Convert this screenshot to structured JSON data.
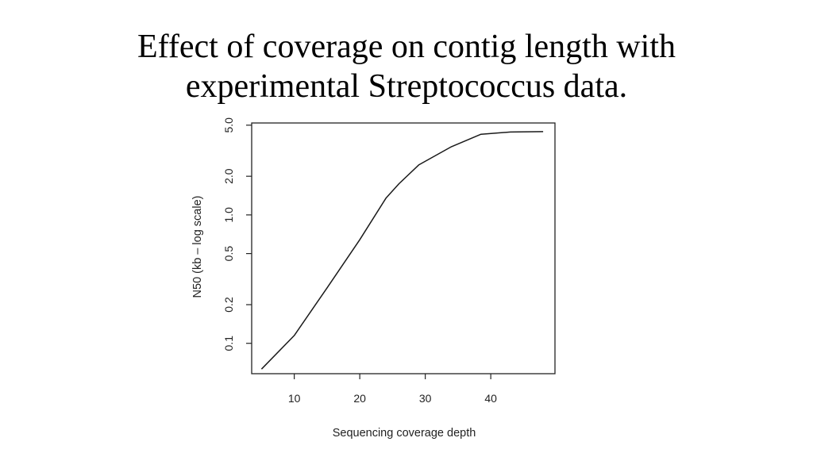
{
  "slide": {
    "title_line1": "Effect of coverage on contig length with",
    "title_line2": "experimental Streptococcus data."
  },
  "chart_data": {
    "type": "line",
    "title": "",
    "xlabel": "Sequencing coverage depth",
    "ylabel": "N50 (kb – log scale)",
    "y_scale": "log",
    "grid": false,
    "xlim": [
      3.5,
      49.8
    ],
    "ylim": [
      0.058,
      5.2
    ],
    "x_ticks": [
      10,
      20,
      30,
      40
    ],
    "x_tick_labels": [
      "10",
      "20",
      "30",
      "40"
    ],
    "y_ticks": [
      0.1,
      0.2,
      0.5,
      1.0,
      2.0,
      5.0
    ],
    "y_tick_labels": [
      "0.1",
      "0.2",
      "0.5",
      "1.0",
      "2.0",
      "5.0"
    ],
    "series": [
      {
        "x": [
          5,
          10,
          15,
          20,
          24,
          26,
          29,
          34,
          38.5,
          43,
          48
        ],
        "y": [
          0.063,
          0.115,
          0.27,
          0.64,
          1.35,
          1.75,
          2.45,
          3.4,
          4.25,
          4.42,
          4.45
        ]
      }
    ]
  }
}
